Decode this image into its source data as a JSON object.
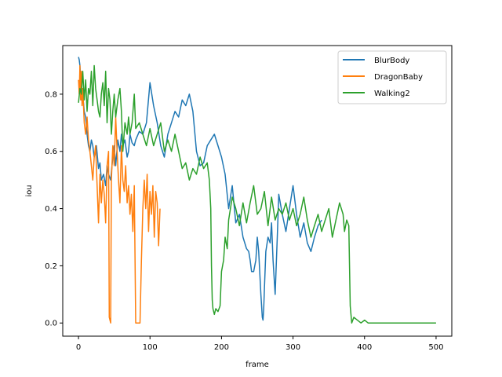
{
  "chart_data": {
    "type": "line",
    "title": "",
    "xlabel": "frame",
    "ylabel": "iou",
    "xlim": [
      -22,
      522
    ],
    "ylim": [
      -0.046,
      0.97
    ],
    "xticks": [
      0,
      100,
      200,
      300,
      400,
      500
    ],
    "yticks": [
      0.0,
      0.2,
      0.4,
      0.6,
      0.8
    ],
    "ytick_labels": [
      "0.0",
      "0.2",
      "0.4",
      "0.6",
      "0.8"
    ],
    "xtick_labels": [
      "0",
      "100",
      "200",
      "300",
      "400",
      "500"
    ],
    "grid": false,
    "legend_position": "top-right",
    "series": [
      {
        "name": "BlurBody",
        "color": "#1f77b4",
        "x": [
          0,
          1,
          2,
          3,
          4,
          5,
          6,
          8,
          10,
          12,
          14,
          16,
          18,
          20,
          22,
          25,
          28,
          30,
          32,
          35,
          38,
          40,
          42,
          45,
          48,
          50,
          52,
          55,
          58,
          60,
          62,
          65,
          68,
          70,
          72,
          75,
          78,
          80,
          85,
          90,
          95,
          100,
          105,
          110,
          115,
          120,
          125,
          130,
          135,
          140,
          145,
          150,
          155,
          160,
          165,
          170,
          175,
          180,
          185,
          190,
          195,
          200,
          205,
          210,
          215,
          220,
          225,
          230,
          235,
          238,
          240,
          242,
          245,
          248,
          250,
          252,
          255,
          257,
          258,
          259,
          260,
          262,
          265,
          268,
          270,
          272,
          275,
          278,
          280,
          285,
          290,
          295,
          300,
          305,
          310,
          315,
          320,
          325,
          330,
          335,
          340
        ],
        "y": [
          0.93,
          0.92,
          0.9,
          0.85,
          0.78,
          0.82,
          0.8,
          0.74,
          0.72,
          0.66,
          0.62,
          0.6,
          0.64,
          0.62,
          0.58,
          0.62,
          0.54,
          0.56,
          0.5,
          0.52,
          0.48,
          0.55,
          0.52,
          0.5,
          0.58,
          0.62,
          0.55,
          0.64,
          0.6,
          0.66,
          0.62,
          0.64,
          0.58,
          0.6,
          0.66,
          0.63,
          0.62,
          0.64,
          0.67,
          0.66,
          0.7,
          0.84,
          0.76,
          0.7,
          0.62,
          0.58,
          0.66,
          0.7,
          0.74,
          0.72,
          0.78,
          0.76,
          0.8,
          0.74,
          0.6,
          0.55,
          0.56,
          0.62,
          0.64,
          0.66,
          0.62,
          0.58,
          0.52,
          0.4,
          0.48,
          0.35,
          0.38,
          0.3,
          0.26,
          0.25,
          0.22,
          0.18,
          0.18,
          0.22,
          0.3,
          0.25,
          0.1,
          0.02,
          0.01,
          0.05,
          0.12,
          0.25,
          0.3,
          0.28,
          0.35,
          0.22,
          0.1,
          0.3,
          0.45,
          0.38,
          0.32,
          0.4,
          0.48,
          0.38,
          0.3,
          0.35,
          0.28,
          0.25,
          0.3,
          0.34,
          0.36
        ]
      },
      {
        "name": "DragonBaby",
        "color": "#ff7f0e",
        "x": [
          0,
          1,
          2,
          3,
          4,
          5,
          6,
          8,
          10,
          12,
          14,
          16,
          18,
          20,
          22,
          24,
          26,
          28,
          30,
          32,
          34,
          36,
          38,
          40,
          42,
          43,
          45,
          46,
          48,
          50,
          52,
          54,
          56,
          58,
          60,
          62,
          64,
          66,
          68,
          70,
          72,
          74,
          76,
          78,
          80,
          82,
          84,
          86,
          88,
          90,
          92,
          94,
          96,
          98,
          100,
          102,
          104,
          106,
          108,
          110,
          112,
          114
        ],
        "y": [
          0.85,
          0.8,
          0.9,
          0.78,
          0.88,
          0.76,
          0.82,
          0.7,
          0.66,
          0.72,
          0.64,
          0.6,
          0.55,
          0.5,
          0.58,
          0.62,
          0.48,
          0.35,
          0.52,
          0.42,
          0.5,
          0.45,
          0.35,
          0.55,
          0.6,
          0.02,
          0.0,
          0.5,
          0.62,
          0.55,
          0.72,
          0.6,
          0.5,
          0.42,
          0.62,
          0.5,
          0.46,
          0.55,
          0.42,
          0.48,
          0.38,
          0.45,
          0.32,
          0.48,
          0.0,
          0.0,
          0.0,
          0.0,
          0.22,
          0.4,
          0.5,
          0.4,
          0.52,
          0.32,
          0.46,
          0.38,
          0.48,
          0.3,
          0.46,
          0.42,
          0.27,
          0.4
        ]
      },
      {
        "name": "Walking2",
        "color": "#2ca02c",
        "x": [
          0,
          2,
          4,
          6,
          8,
          10,
          12,
          14,
          16,
          18,
          20,
          22,
          24,
          26,
          28,
          30,
          32,
          34,
          36,
          38,
          40,
          42,
          44,
          46,
          48,
          50,
          52,
          55,
          58,
          60,
          62,
          65,
          68,
          70,
          72,
          75,
          78,
          80,
          85,
          90,
          95,
          100,
          105,
          110,
          115,
          120,
          125,
          130,
          135,
          140,
          145,
          150,
          155,
          160,
          165,
          170,
          175,
          180,
          183,
          185,
          186,
          187,
          188,
          190,
          192,
          195,
          198,
          200,
          203,
          205,
          208,
          210,
          215,
          220,
          225,
          230,
          235,
          240,
          245,
          250,
          255,
          260,
          265,
          270,
          275,
          280,
          285,
          290,
          295,
          300,
          305,
          310,
          315,
          320,
          325,
          330,
          335,
          340,
          345,
          350,
          355,
          360,
          365,
          370,
          372,
          375,
          378,
          380,
          382,
          385,
          390,
          395,
          400,
          405,
          410,
          420,
          430,
          440,
          450,
          460,
          470,
          480,
          490,
          500
        ],
        "y": [
          0.77,
          0.82,
          0.8,
          0.88,
          0.78,
          0.85,
          0.74,
          0.82,
          0.8,
          0.88,
          0.76,
          0.9,
          0.82,
          0.78,
          0.74,
          0.72,
          0.8,
          0.84,
          0.76,
          0.88,
          0.7,
          0.82,
          0.78,
          0.66,
          0.74,
          0.8,
          0.72,
          0.78,
          0.82,
          0.74,
          0.6,
          0.7,
          0.66,
          0.72,
          0.66,
          0.7,
          0.8,
          0.68,
          0.7,
          0.66,
          0.62,
          0.68,
          0.62,
          0.66,
          0.7,
          0.6,
          0.64,
          0.6,
          0.66,
          0.6,
          0.54,
          0.56,
          0.5,
          0.54,
          0.52,
          0.58,
          0.54,
          0.56,
          0.5,
          0.4,
          0.2,
          0.08,
          0.05,
          0.03,
          0.05,
          0.04,
          0.06,
          0.18,
          0.22,
          0.3,
          0.26,
          0.36,
          0.44,
          0.4,
          0.34,
          0.42,
          0.35,
          0.42,
          0.48,
          0.38,
          0.4,
          0.46,
          0.34,
          0.44,
          0.36,
          0.4,
          0.38,
          0.42,
          0.36,
          0.4,
          0.34,
          0.38,
          0.44,
          0.36,
          0.3,
          0.34,
          0.38,
          0.32,
          0.36,
          0.4,
          0.3,
          0.36,
          0.42,
          0.38,
          0.32,
          0.36,
          0.34,
          0.06,
          0.0,
          0.02,
          0.01,
          0.0,
          0.01,
          0.0,
          0.0,
          0.0,
          0.0,
          0.0,
          0.0,
          0.0,
          0.0,
          0.0,
          0.0,
          0.0
        ]
      }
    ]
  }
}
